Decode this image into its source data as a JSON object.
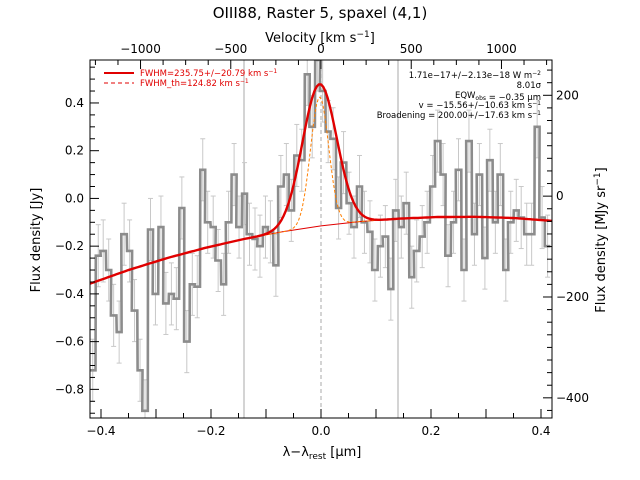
{
  "chart_data": {
    "type": "line",
    "title": "OIII88, Raster 5, spaxel (4,1)",
    "xlabel": "λ−λ",
    "xlabel_sub": "rest",
    "xlabel_unit": " [μm]",
    "ylabel": "Flux density [Jy]",
    "top_axis_label": "Velocity [km s",
    "top_axis_label_sup": "−1",
    "top_axis_label_end": "]",
    "right_axis_label": "Flux density [MJy sr",
    "right_axis_label_sup": "−1",
    "right_axis_label_end": "]",
    "xlim": [
      -0.42,
      0.42
    ],
    "ylim": [
      -0.92,
      0.58
    ],
    "top_xlim": [
      -1280,
      1280
    ],
    "right_ylim": [
      -440,
      270
    ],
    "grid": false,
    "legend_position": "top-left",
    "x_ticks": [
      {
        "value": -0.4,
        "label": "−0.4"
      },
      {
        "value": -0.2,
        "label": "−0.2"
      },
      {
        "value": 0.0,
        "label": "0.0"
      },
      {
        "value": 0.2,
        "label": "0.2"
      },
      {
        "value": 0.4,
        "label": "0.4"
      }
    ],
    "y_ticks": [
      {
        "value": 0.4,
        "label": "0.4"
      },
      {
        "value": 0.2,
        "label": "0.2"
      },
      {
        "value": 0.0,
        "label": "0.0"
      },
      {
        "value": -0.2,
        "label": "−0.2"
      },
      {
        "value": -0.4,
        "label": "−0.4"
      },
      {
        "value": -0.6,
        "label": "−0.6"
      },
      {
        "value": -0.8,
        "label": "−0.8"
      }
    ],
    "top_ticks": [
      {
        "value": -1000,
        "label": "−1000"
      },
      {
        "value": -500,
        "label": "−500"
      },
      {
        "value": 0,
        "label": "0"
      },
      {
        "value": 500,
        "label": "500"
      },
      {
        "value": 1000,
        "label": "1000"
      }
    ],
    "right_ticks": [
      {
        "value": 200,
        "label": "200"
      },
      {
        "value": 0,
        "label": "0"
      },
      {
        "value": -200,
        "label": "−200"
      },
      {
        "value": -400,
        "label": "−400"
      }
    ],
    "legend": [
      {
        "label": "FWHM=235.75+/−20.79 km s",
        "sup": "−1",
        "color": "#e00000",
        "dash": "solid"
      },
      {
        "label": "FWHM_th=124.82 km s",
        "sup": "−1",
        "color": "#e00000",
        "dash": "dashed"
      }
    ],
    "annotations": [
      {
        "parts": [
          {
            "t": "1.71e−17+/−2.13e−18 W m"
          },
          {
            "t": "−2",
            "sup": true
          }
        ]
      },
      {
        "parts": [
          {
            "t": "8.01σ"
          }
        ]
      },
      {
        "parts": [
          {
            "t": "EQW"
          },
          {
            "t": "obs",
            "sub": true
          },
          {
            "t": " = −0.35 μm"
          }
        ]
      },
      {
        "parts": [
          {
            "t": "v = −15.56+/−10.63 km s"
          },
          {
            "t": "−1",
            "sup": true
          }
        ]
      },
      {
        "parts": [
          {
            "t": "Broadening = 200.00+/−17.63 km s"
          },
          {
            "t": "−1",
            "sup": true
          }
        ]
      }
    ],
    "vertical_lines": [
      {
        "x": -0.14,
        "color": "#aaaaaa",
        "style": "solid"
      },
      {
        "x": 0.14,
        "color": "#aaaaaa",
        "style": "solid"
      },
      {
        "x": 0.0,
        "color": "#aaaaaa",
        "style": "dashed"
      }
    ],
    "series": [
      {
        "role": "spectrum",
        "style": "step",
        "color": "#8c8c8c",
        "errorbar_color": "#c8c8c8",
        "x": [
          -0.415,
          -0.405,
          -0.396,
          -0.386,
          -0.377,
          -0.367,
          -0.358,
          -0.348,
          -0.339,
          -0.329,
          -0.32,
          -0.31,
          -0.301,
          -0.291,
          -0.282,
          -0.272,
          -0.263,
          -0.253,
          -0.244,
          -0.234,
          -0.225,
          -0.215,
          -0.206,
          -0.196,
          -0.187,
          -0.177,
          -0.168,
          -0.158,
          -0.149,
          -0.139,
          -0.13,
          -0.12,
          -0.111,
          -0.101,
          -0.092,
          -0.082,
          -0.073,
          -0.063,
          -0.054,
          -0.044,
          -0.035,
          -0.025,
          -0.016,
          -0.006,
          0.003,
          0.013,
          0.022,
          0.032,
          0.041,
          0.051,
          0.06,
          0.07,
          0.079,
          0.089,
          0.098,
          0.108,
          0.117,
          0.127,
          0.136,
          0.146,
          0.155,
          0.165,
          0.174,
          0.184,
          0.193,
          0.203,
          0.212,
          0.222,
          0.231,
          0.241,
          0.25,
          0.26,
          0.269,
          0.279,
          0.288,
          0.298,
          0.307,
          0.317,
          0.326,
          0.336,
          0.345,
          0.355,
          0.364,
          0.374,
          0.383,
          0.393,
          0.402,
          0.412
        ],
        "y": [
          -0.72,
          -0.24,
          -0.22,
          -0.3,
          -0.49,
          -0.56,
          -0.15,
          -0.22,
          -0.47,
          -0.72,
          -0.89,
          -0.13,
          -0.4,
          -0.12,
          -0.44,
          -0.4,
          -0.42,
          -0.04,
          -0.6,
          -0.36,
          -0.37,
          0.12,
          -0.1,
          -0.12,
          -0.26,
          -0.36,
          -0.1,
          0.1,
          -0.12,
          0.02,
          -0.15,
          -0.17,
          -0.2,
          -0.12,
          -0.14,
          -0.28,
          0.05,
          0.1,
          -0.05,
          0.18,
          0.16,
          0.52,
          0.3,
          0.58,
          0.45,
          0.28,
          0.25,
          -0.04,
          0.15,
          -0.02,
          -0.12,
          0.05,
          -0.1,
          -0.14,
          -0.3,
          -0.2,
          -0.16,
          -0.38,
          -0.05,
          -0.12,
          -0.02,
          -0.33,
          -0.22,
          -0.16,
          -0.1,
          0.05,
          0.24,
          0.1,
          -0.24,
          -0.1,
          0.12,
          -0.3,
          0.24,
          -0.15,
          0.1,
          -0.25,
          0.16,
          -0.1,
          0.1,
          -0.3,
          -0.1,
          -0.05,
          -0.08,
          -0.15,
          -0.15,
          0.3,
          -0.08,
          -0.2
        ],
        "err": [
          0.13,
          0.13,
          0.13,
          0.13,
          0.13,
          0.13,
          0.13,
          0.13,
          0.13,
          0.13,
          0.13,
          0.13,
          0.13,
          0.13,
          0.13,
          0.13,
          0.13,
          0.13,
          0.13,
          0.13,
          0.13,
          0.13,
          0.13,
          0.13,
          0.13,
          0.13,
          0.13,
          0.13,
          0.13,
          0.13,
          0.13,
          0.13,
          0.13,
          0.13,
          0.13,
          0.13,
          0.13,
          0.13,
          0.13,
          0.13,
          0.13,
          0.13,
          0.13,
          0.13,
          0.13,
          0.13,
          0.13,
          0.13,
          0.13,
          0.13,
          0.13,
          0.13,
          0.13,
          0.13,
          0.13,
          0.13,
          0.13,
          0.13,
          0.13,
          0.13,
          0.13,
          0.13,
          0.13,
          0.13,
          0.13,
          0.13,
          0.13,
          0.13,
          0.13,
          0.13,
          0.13,
          0.13,
          0.13,
          0.13,
          0.13,
          0.13,
          0.13,
          0.13,
          0.13,
          0.13,
          0.13,
          0.13,
          0.13,
          0.13,
          0.13,
          0.13,
          0.13,
          0.13
        ]
      },
      {
        "role": "continuum",
        "style": "line",
        "color": "#e00000",
        "x": [
          -0.42,
          -0.35,
          -0.28,
          -0.21,
          -0.14,
          -0.07,
          0.0,
          0.07,
          0.14,
          0.21,
          0.28,
          0.35,
          0.42
        ],
        "y": [
          -0.357,
          -0.3,
          -0.25,
          -0.207,
          -0.17,
          -0.14,
          -0.115,
          -0.097,
          -0.085,
          -0.078,
          -0.077,
          -0.082,
          -0.094
        ]
      },
      {
        "role": "fit",
        "style": "line",
        "color": "#e00000",
        "gaussian": {
          "center": -0.0026,
          "amplitude": 0.595,
          "sigma": 0.0312,
          "x_range": [
            -0.42,
            0.42
          ],
          "step": 0.004
        }
      },
      {
        "role": "thermal",
        "style": "line",
        "color": "#ff7f00",
        "gaussian": {
          "center": -0.0026,
          "amplitude": 0.54,
          "sigma": 0.0166,
          "x_range": [
            -0.14,
            0.14
          ],
          "step": 0.003
        }
      }
    ]
  }
}
